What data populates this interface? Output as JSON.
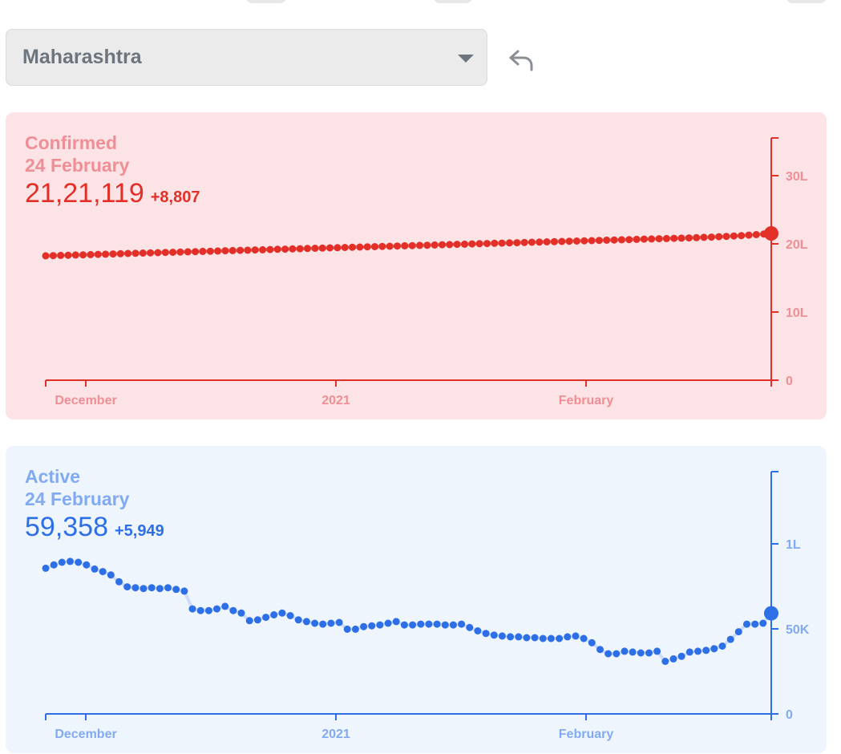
{
  "region_select": {
    "selected": "Maharashtra"
  },
  "colors": {
    "confirmed_text": "#e23028",
    "confirmed_label": "#f08e95",
    "confirmed_bg": "#fce3e5",
    "active_text": "#2d6fe6",
    "active_label": "#81aaf2",
    "active_bg": "#eff5fd"
  },
  "confirmed": {
    "title": "Confirmed",
    "date": "24 February",
    "value": "21,21,119",
    "delta": "+8,807"
  },
  "active": {
    "title": "Active",
    "date": "24 February",
    "value": "59,358",
    "delta": "+5,949"
  },
  "chart_data": [
    {
      "type": "line",
      "x_ticks": [
        "December",
        "2021",
        "February"
      ],
      "y_ticks": [
        "0",
        "10L",
        "20L",
        "30L"
      ],
      "ylim": [
        0,
        3500000
      ],
      "series": [
        {
          "values": [
            1797000,
            1800000,
            1803000,
            1806000,
            1809000,
            1812000,
            1815000,
            1818000,
            1821000,
            1824000,
            1828000,
            1831000,
            1834000,
            1837000,
            1840000,
            1843000,
            1846000,
            1849000,
            1852000,
            1855000,
            1858000,
            1861000,
            1864000,
            1867000,
            1870000,
            1873000,
            1876000,
            1879000,
            1882000,
            1885000,
            1888000,
            1891000,
            1894000,
            1897000,
            1900000,
            1903000,
            1906000,
            1909000,
            1912000,
            1915000,
            1918000,
            1921000,
            1924000,
            1927000,
            1930000,
            1933000,
            1936000,
            1939000,
            1942000,
            1945000,
            1948000,
            1951000,
            1954000,
            1957000,
            1960000,
            1963000,
            1966000,
            1969000,
            1972000,
            1975000,
            1978000,
            1981000,
            1984000,
            1987000,
            1990000,
            1993000,
            1996000,
            1999000,
            2002000,
            2005000,
            2008000,
            2011000,
            2014000,
            2017000,
            2020000,
            2023000,
            2026000,
            2029000,
            2032000,
            2035000,
            2038000,
            2041000,
            2044000,
            2047000,
            2050000,
            2053000,
            2056000,
            2060000,
            2064000,
            2068000,
            2073000,
            2078000,
            2084000,
            2090000,
            2096000,
            2103000,
            2112000,
            2121119
          ]
        }
      ]
    },
    {
      "type": "line",
      "x_ticks": [
        "December",
        "2021",
        "February"
      ],
      "y_ticks": [
        "0",
        "50K",
        "1L"
      ],
      "ylim": [
        0,
        143000
      ],
      "series": [
        {
          "values": [
            86000,
            88000,
            89500,
            90000,
            89500,
            88000,
            85500,
            84000,
            82000,
            78000,
            75000,
            74500,
            74000,
            74500,
            74000,
            74500,
            73500,
            72500,
            62000,
            61000,
            61000,
            62000,
            63500,
            61000,
            59500,
            55000,
            55500,
            57000,
            58500,
            59500,
            58000,
            55500,
            54500,
            53500,
            53000,
            53500,
            54000,
            50000,
            50000,
            51500,
            52000,
            52500,
            53500,
            54500,
            52500,
            52500,
            53000,
            53000,
            53000,
            52500,
            52500,
            53000,
            51000,
            49000,
            47500,
            46500,
            46000,
            45500,
            45500,
            45000,
            45000,
            44500,
            44500,
            44500,
            45500,
            46000,
            44500,
            42000,
            38000,
            35500,
            35500,
            37000,
            36500,
            36000,
            36000,
            37000,
            31000,
            32500,
            34000,
            36500,
            37000,
            37500,
            38500,
            40000,
            44000,
            48500,
            53000,
            53000,
            53500,
            59358
          ]
        }
      ]
    }
  ]
}
